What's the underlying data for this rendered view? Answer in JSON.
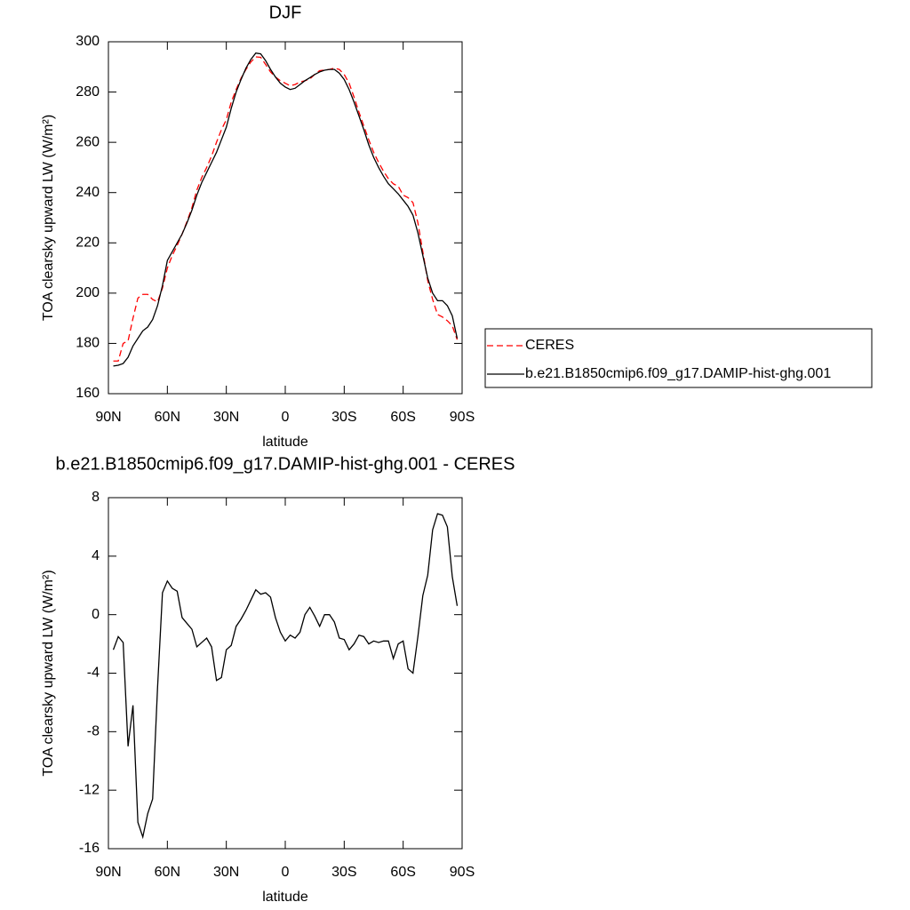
{
  "chart_data": [
    {
      "type": "line",
      "title": "DJF",
      "x_label": "latitude",
      "y_label": "TOA clearsky upward LW (W/m²)",
      "x": [
        87.5,
        85,
        82.5,
        80,
        77.5,
        75,
        72.5,
        70,
        67.5,
        65,
        62.5,
        60,
        57.5,
        55,
        52.5,
        50,
        47.5,
        45,
        42.5,
        40,
        37.5,
        35,
        32.5,
        30,
        27.5,
        25,
        22.5,
        20,
        17.5,
        15,
        12.5,
        10,
        7.5,
        5,
        2.5,
        0,
        -2.5,
        -5,
        -7.5,
        -10,
        -12.5,
        -15,
        -17.5,
        -20,
        -22.5,
        -25,
        -27.5,
        -30,
        -32.5,
        -35,
        -37.5,
        -40,
        -42.5,
        -45,
        -47.5,
        -50,
        -52.5,
        -55,
        -57.5,
        -60,
        -62.5,
        -65,
        -67.5,
        -70,
        -72.5,
        -75,
        -77.5,
        -80,
        -82.5,
        -85,
        -87.5
      ],
      "series": [
        {
          "name": "CERES",
          "color": "#ff0000",
          "dashed": true,
          "values": [
            173,
            173,
            180,
            181,
            190,
            198,
            199.5,
            199.5,
            197.5,
            196.5,
            202,
            210,
            215,
            219,
            223.5,
            228.5,
            234,
            241,
            246,
            250,
            254.5,
            260,
            265,
            269,
            276,
            281,
            285.5,
            289,
            292,
            294,
            293.8,
            291,
            288,
            286,
            284.5,
            283.5,
            282.5,
            283,
            284,
            284.5,
            285.2,
            287,
            288.5,
            288.7,
            289,
            289.5,
            289,
            287,
            283.5,
            278,
            272,
            266.5,
            261,
            256,
            252,
            248.5,
            245.5,
            243.5,
            242.5,
            239,
            238,
            236,
            228,
            216.5,
            205,
            197.5,
            191.5,
            190.5,
            189,
            187,
            181.5
          ]
        },
        {
          "name": "b.e21.B1850cmip6.f09_g17.DAMIP-hist-ghg.001",
          "color": "#000000",
          "dashed": false,
          "values": [
            171,
            171.3,
            172,
            174.5,
            179,
            182,
            185,
            186.5,
            189.5,
            195,
            203,
            213,
            216.5,
            220,
            223.5,
            228,
            233,
            239,
            244,
            248,
            252,
            256,
            261,
            266,
            273.5,
            280,
            285,
            289.5,
            293,
            295.5,
            295.2,
            292.5,
            289,
            286,
            283.5,
            282,
            281,
            281.5,
            283,
            284.5,
            285.7,
            287,
            288,
            288.7,
            289,
            289,
            287.5,
            285,
            281,
            276,
            270.5,
            265,
            259,
            254,
            250,
            246.5,
            243.5,
            241.5,
            239.5,
            237,
            234.5,
            231,
            224,
            215,
            206,
            200,
            197,
            197,
            195,
            191,
            182
          ]
        }
      ],
      "xlim": [
        90,
        -90
      ],
      "xticks": [
        {
          "value": 90,
          "label": "90N"
        },
        {
          "value": 60,
          "label": "60N"
        },
        {
          "value": 30,
          "label": "30N"
        },
        0,
        {
          "value": -30,
          "label": "30S"
        },
        {
          "value": -60,
          "label": "60S"
        },
        {
          "value": -90,
          "label": "90S"
        }
      ],
      "ylim": [
        160,
        300
      ],
      "yticks": [
        160,
        180,
        200,
        220,
        240,
        260,
        280,
        300
      ],
      "legend": "right"
    },
    {
      "type": "line",
      "title": "b.e21.B1850cmip6.f09_g17.DAMIP-hist-ghg.001 - CERES",
      "x_label": "latitude",
      "y_label": "TOA clearsky upward LW (W/m²)",
      "x": [
        87.5,
        85,
        82.5,
        80,
        77.5,
        75,
        72.5,
        70,
        67.5,
        65,
        62.5,
        60,
        57.5,
        55,
        52.5,
        50,
        47.5,
        45,
        42.5,
        40,
        37.5,
        35,
        32.5,
        30,
        27.5,
        25,
        22.5,
        20,
        17.5,
        15,
        12.5,
        10,
        7.5,
        5,
        2.5,
        0,
        -2.5,
        -5,
        -7.5,
        -10,
        -12.5,
        -15,
        -17.5,
        -20,
        -22.5,
        -25,
        -27.5,
        -30,
        -32.5,
        -35,
        -37.5,
        -40,
        -42.5,
        -45,
        -47.5,
        -50,
        -52.5,
        -55,
        -57.5,
        -60,
        -62.5,
        -65,
        -67.5,
        -70,
        -72.5,
        -75,
        -77.5,
        -80,
        -82.5,
        -85,
        -87.5
      ],
      "color": "#000000",
      "values": [
        -2.4,
        -1.5,
        -1.9,
        -9,
        -6.2,
        -14.2,
        -15.2,
        -13.6,
        -12.6,
        -5,
        1.5,
        2.3,
        1.8,
        1.6,
        -0.2,
        -0.6,
        -1,
        -2.2,
        -1.9,
        -1.6,
        -2.2,
        -4.5,
        -4.3,
        -2.4,
        -2.1,
        -0.8,
        -0.3,
        0.3,
        1,
        1.7,
        1.4,
        1.5,
        1.2,
        -0.2,
        -1.2,
        -1.8,
        -1.4,
        -1.6,
        -1.2,
        0,
        0.5,
        -0.1,
        -0.8,
        0,
        0,
        -0.5,
        -1.6,
        -1.7,
        -2.4,
        -2,
        -1.4,
        -1.5,
        -2,
        -1.8,
        -1.9,
        -1.8,
        -1.8,
        -3,
        -2,
        -1.8,
        -3.7,
        -4,
        -1.5,
        1.3,
        2.7,
        5.8,
        6.9,
        6.8,
        6,
        2.6,
        0.6
      ],
      "xlim": [
        90,
        -90
      ],
      "xticks": [
        {
          "value": 90,
          "label": "90N"
        },
        {
          "value": 60,
          "label": "60N"
        },
        {
          "value": 30,
          "label": "30N"
        },
        0,
        {
          "value": -30,
          "label": "30S"
        },
        {
          "value": -60,
          "label": "60S"
        },
        {
          "value": -90,
          "label": "90S"
        }
      ],
      "ylim": [
        -16,
        8
      ],
      "yticks": [
        -16,
        -12,
        -8,
        -4,
        0,
        4,
        8
      ]
    }
  ]
}
